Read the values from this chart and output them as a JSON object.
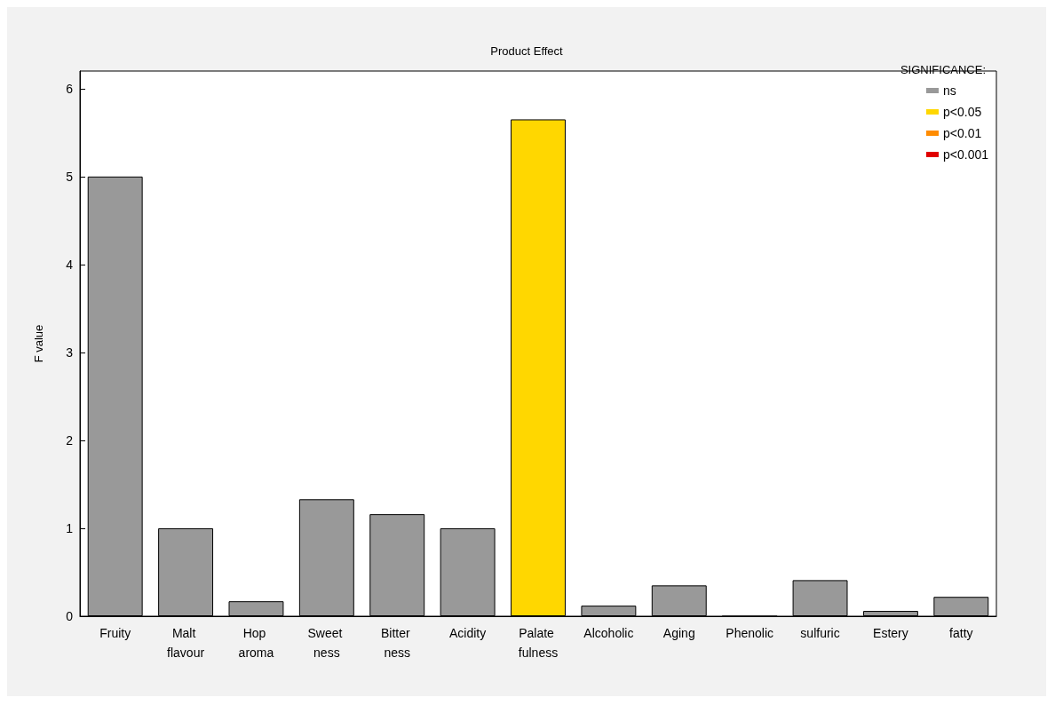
{
  "chart_data": {
    "type": "bar",
    "title": "Product Effect",
    "ylabel": "F value",
    "legend_title": "SIGNIFICANCE:",
    "categories": [
      "Fruity",
      "Malt flavour",
      "Hop aroma",
      "Sweet ness",
      "Bitter ness",
      "Acidity",
      "Palate fulness",
      "Alcoholic",
      "Aging",
      "Phenolic",
      "sulfuric",
      "Estery",
      "fatty"
    ],
    "series": [
      {
        "name": "ns",
        "color": "#999999",
        "values": [
          5.0,
          1.0,
          0.17,
          1.33,
          1.16,
          1.0,
          null,
          0.12,
          0.35,
          0,
          0.41,
          0.06,
          0.22
        ]
      },
      {
        "name": "p<0.05",
        "color": "#ffd700",
        "values": [
          null,
          null,
          null,
          null,
          null,
          null,
          5.65,
          null,
          null,
          null,
          null,
          null,
          null
        ]
      },
      {
        "name": "p<0.01",
        "color": "#ff8c00",
        "values": [
          null,
          null,
          null,
          null,
          null,
          null,
          null,
          null,
          null,
          null,
          null,
          null,
          null
        ]
      },
      {
        "name": "p<0.001",
        "color": "#e00000",
        "values": [
          null,
          null,
          null,
          null,
          null,
          null,
          null,
          null,
          null,
          null,
          null,
          null,
          null
        ]
      }
    ],
    "stacked": true,
    "ylim": [
      0,
      6.2
    ],
    "yticks": [
      0,
      1,
      2,
      3,
      4,
      5,
      6
    ],
    "grid": false,
    "legend": "top right"
  }
}
